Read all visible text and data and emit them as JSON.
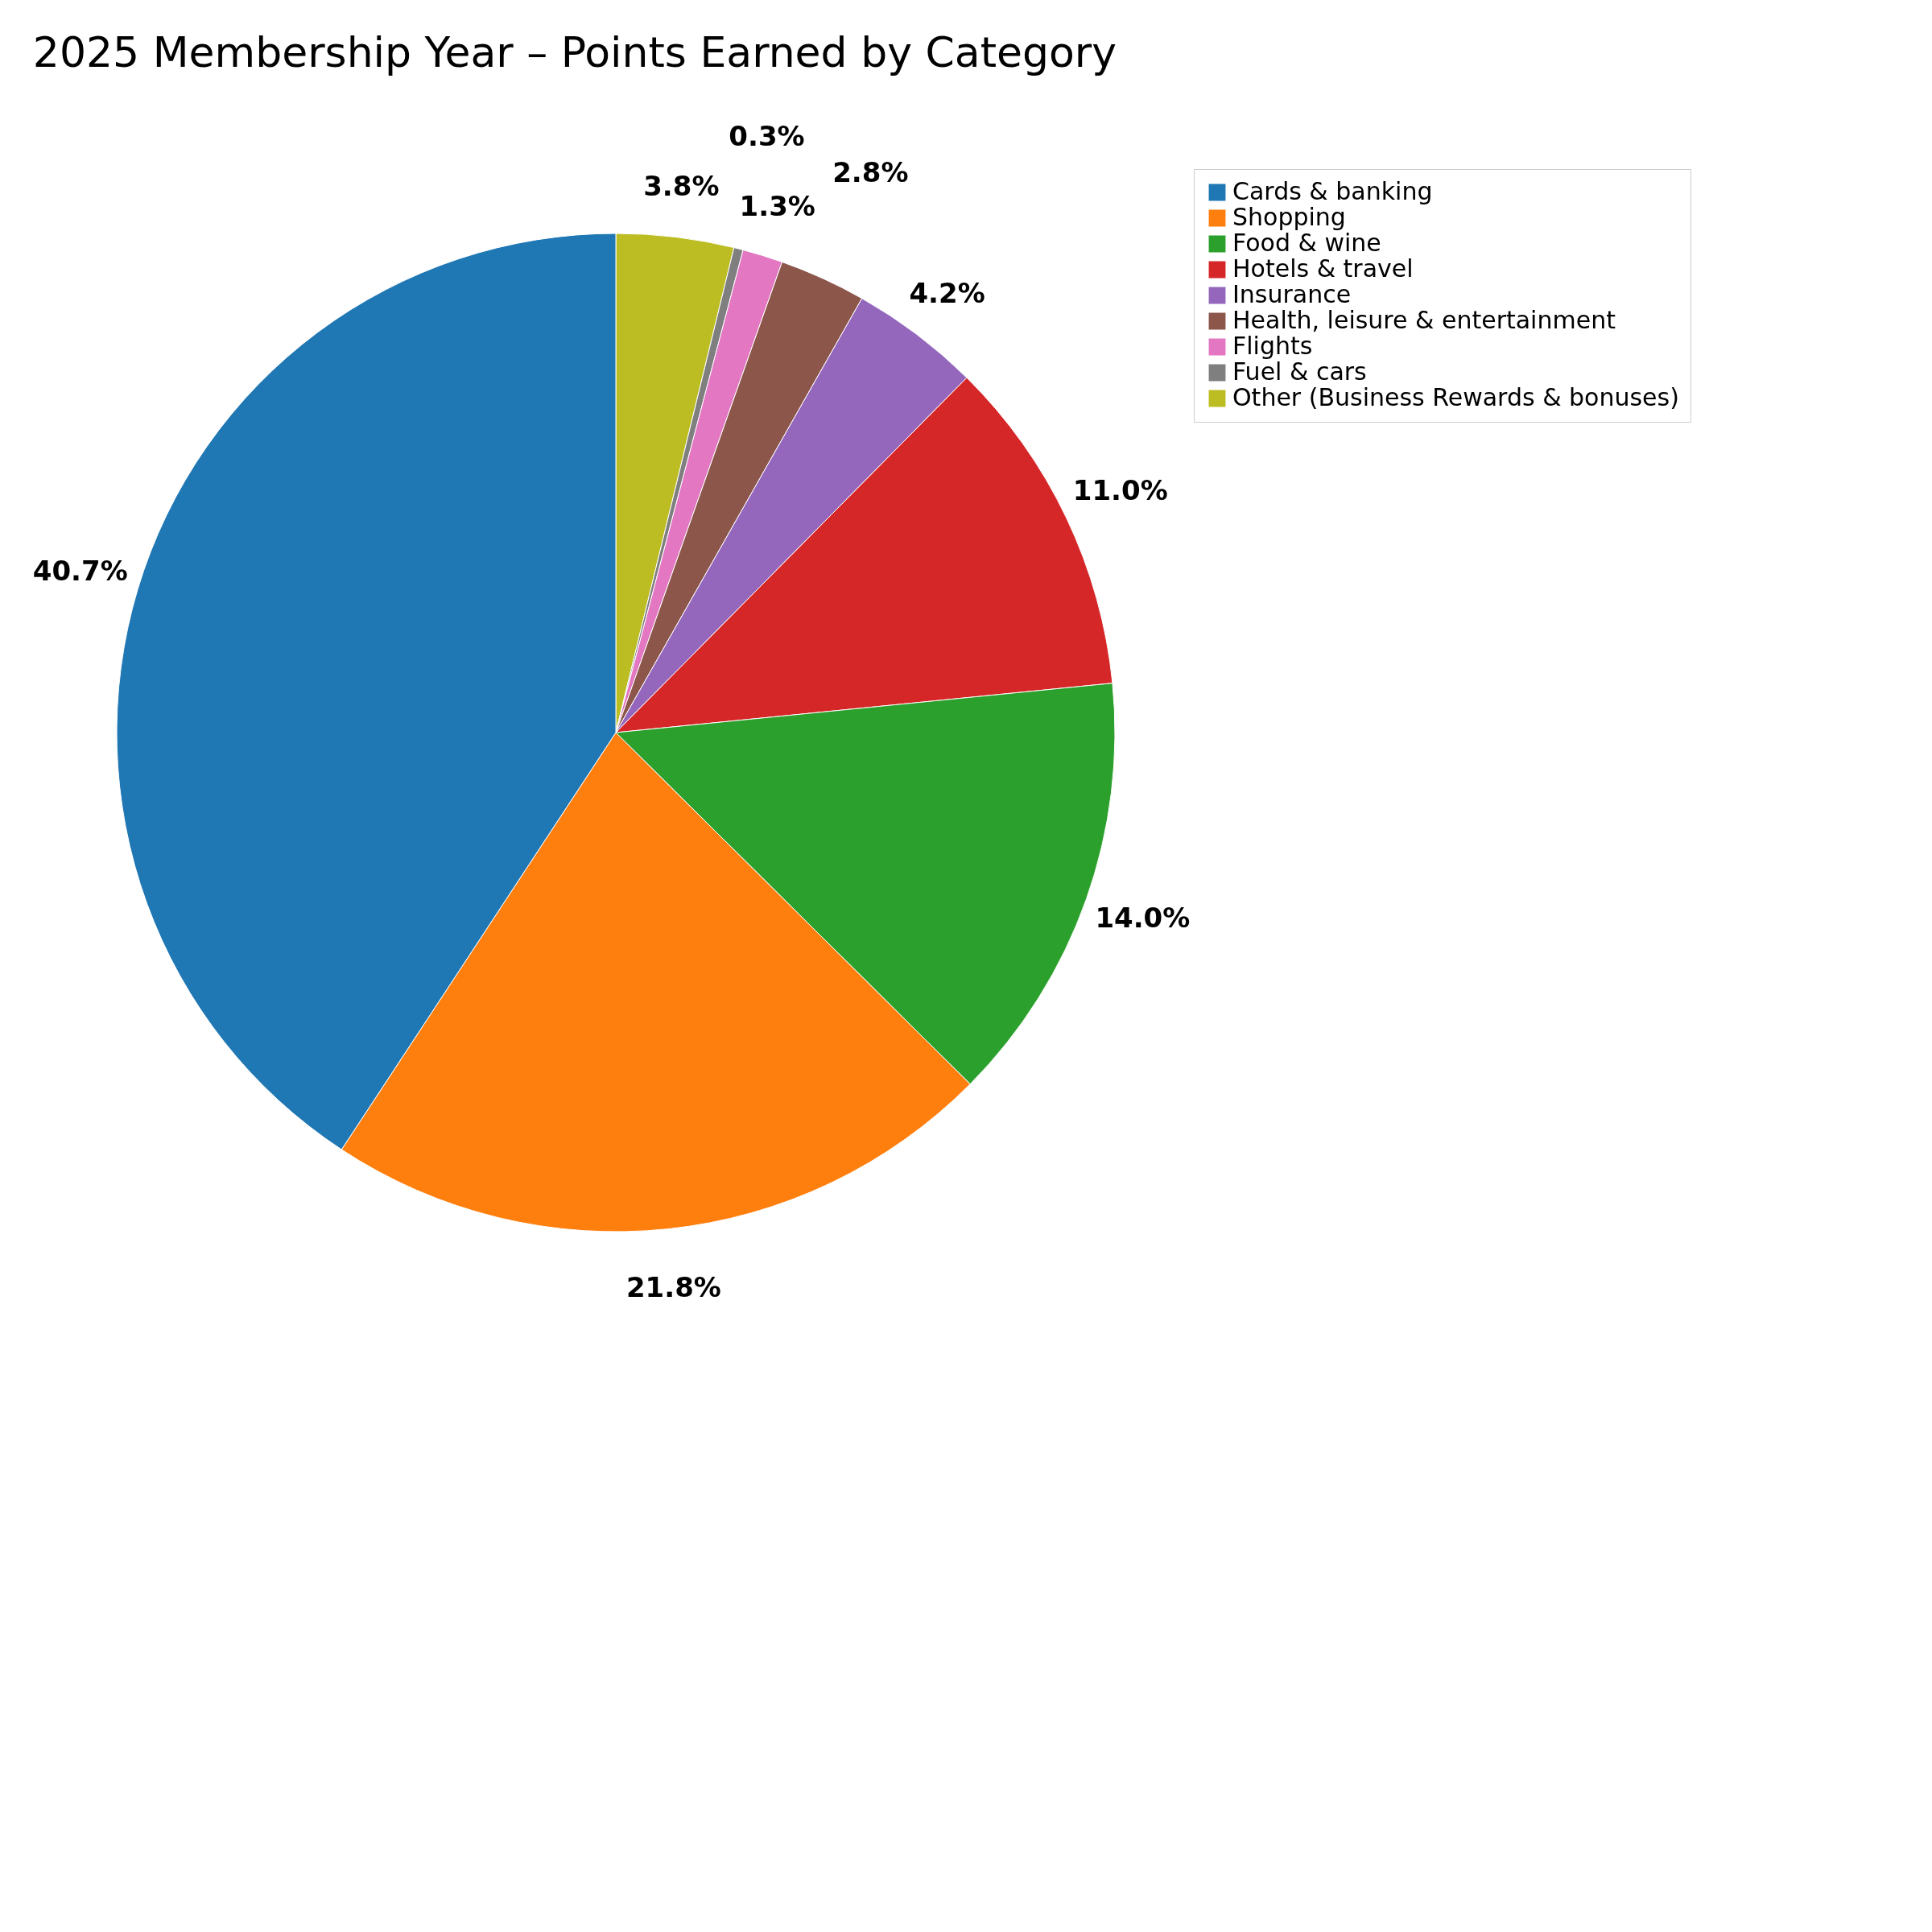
{
  "chart_data": {
    "type": "pie",
    "title": "2025 Membership Year – Points Earned by Category",
    "categories": [
      "Cards & banking",
      "Shopping",
      "Food & wine",
      "Hotels & travel",
      "Insurance",
      "Health, leisure & entertainment",
      "Flights",
      "Fuel & cars",
      "Other (Business Rewards & bonuses)"
    ],
    "values": [
      40.7,
      21.8,
      14.0,
      11.0,
      4.2,
      2.8,
      1.3,
      0.3,
      3.8
    ],
    "colors": [
      "#1f77b4",
      "#ff7f0e",
      "#2ca02c",
      "#d62728",
      "#9467bd",
      "#8c564b",
      "#e377c2",
      "#7f7f7f",
      "#bcbd22"
    ],
    "value_labels": [
      "40.7%",
      "21.8%",
      "14.0%",
      "11.0%",
      "4.2%",
      "2.8%",
      "1.3%",
      "0.3%",
      "3.8%"
    ],
    "legend": "right"
  }
}
